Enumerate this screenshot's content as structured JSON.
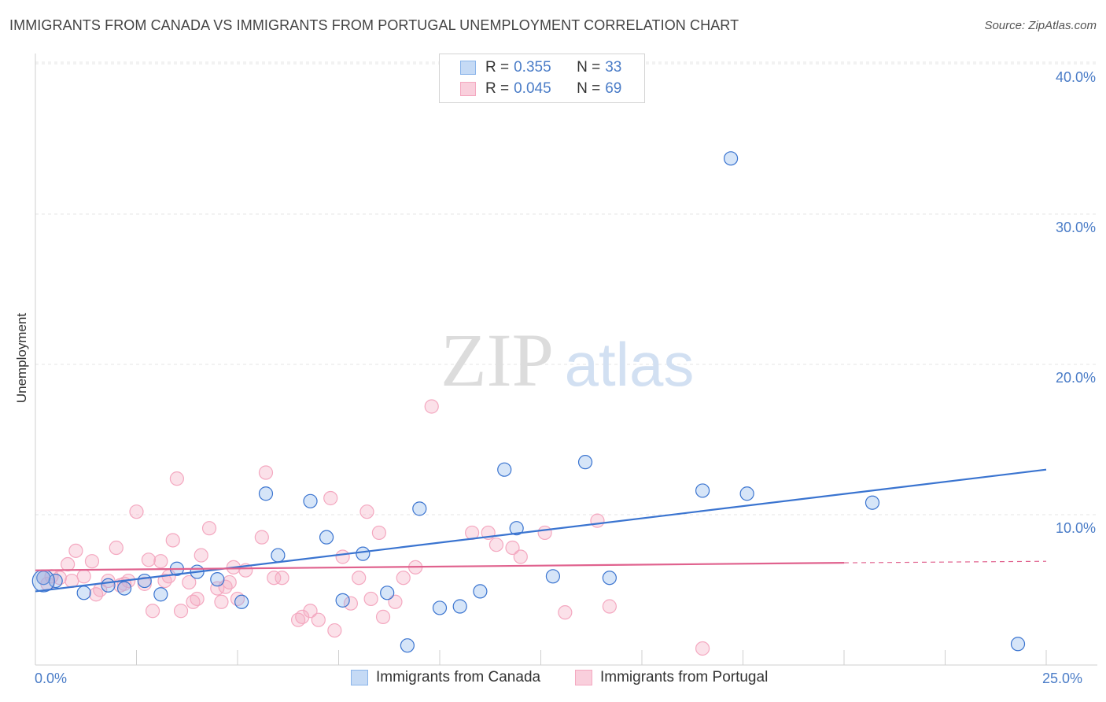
{
  "title": "IMMIGRANTS FROM CANADA VS IMMIGRANTS FROM PORTUGAL UNEMPLOYMENT CORRELATION CHART",
  "source": "Source: ZipAtlas.com",
  "watermark": {
    "zip": "ZIP",
    "atlas": "atlas"
  },
  "legend": {
    "rows": [
      {
        "r_label": "R =",
        "r_value": "0.355",
        "n_label": "N =",
        "n_value": "33"
      },
      {
        "r_label": "R =",
        "r_value": "0.045",
        "n_label": "N =",
        "n_value": "69"
      }
    ]
  },
  "chart_data": {
    "type": "scatter",
    "title": "IMMIGRANTS FROM CANADA VS IMMIGRANTS FROM PORTUGAL UNEMPLOYMENT CORRELATION CHART",
    "xlabel": "",
    "ylabel": "Unemployment",
    "xlim": [
      0,
      25
    ],
    "ylim": [
      0,
      42
    ],
    "x_tick_labels": [
      "0.0%",
      "25.0%"
    ],
    "y_ticks": [
      10,
      20,
      30,
      40
    ],
    "y_tick_labels": [
      "10.0%",
      "20.0%",
      "30.0%",
      "40.0%"
    ],
    "grid": true,
    "legend_position": "top-center",
    "colors": {
      "canada": "#8ab4ea",
      "canada_line": "#3a74d0",
      "portugal": "#f4a8c0",
      "portugal_line": "#e0628e"
    },
    "series": [
      {
        "name": "Immigrants from Canada",
        "trend": {
          "x": [
            0,
            25
          ],
          "y": [
            4.9,
            13.0
          ]
        },
        "points": [
          [
            0.2,
            5.8
          ],
          [
            1.2,
            4.8
          ],
          [
            2.2,
            5.1
          ],
          [
            2.7,
            5.6
          ],
          [
            3.1,
            4.7
          ],
          [
            3.5,
            6.4
          ],
          [
            4.0,
            6.2
          ],
          [
            4.5,
            5.7
          ],
          [
            5.1,
            4.2
          ],
          [
            5.7,
            11.4
          ],
          [
            6.0,
            7.3
          ],
          [
            6.8,
            10.9
          ],
          [
            7.2,
            8.5
          ],
          [
            7.6,
            4.3
          ],
          [
            8.1,
            7.4
          ],
          [
            8.7,
            4.8
          ],
          [
            9.2,
            1.3
          ],
          [
            9.5,
            10.4
          ],
          [
            10.0,
            3.8
          ],
          [
            10.5,
            3.9
          ],
          [
            11.0,
            4.9
          ],
          [
            11.6,
            13.0
          ],
          [
            11.9,
            9.1
          ],
          [
            12.8,
            5.9
          ],
          [
            13.6,
            13.5
          ],
          [
            14.2,
            5.8
          ],
          [
            16.5,
            11.6
          ],
          [
            17.2,
            33.7
          ],
          [
            17.6,
            11.4
          ],
          [
            20.7,
            10.8
          ],
          [
            24.3,
            1.4
          ],
          [
            0.5,
            5.6
          ],
          [
            1.8,
            5.3
          ]
        ]
      },
      {
        "name": "Immigrants from Portugal",
        "trend": {
          "x": [
            0,
            20
          ],
          "y": [
            6.3,
            6.8
          ]
        },
        "trend_ext": {
          "x": [
            20,
            25
          ],
          "y": [
            6.8,
            6.9
          ]
        },
        "points": [
          [
            0.2,
            5.8
          ],
          [
            0.4,
            5.9
          ],
          [
            0.6,
            5.8
          ],
          [
            0.8,
            6.7
          ],
          [
            1.0,
            7.6
          ],
          [
            1.2,
            5.9
          ],
          [
            1.4,
            6.9
          ],
          [
            1.6,
            5.0
          ],
          [
            1.8,
            5.6
          ],
          [
            2.0,
            7.8
          ],
          [
            2.2,
            5.4
          ],
          [
            2.3,
            5.6
          ],
          [
            2.5,
            10.2
          ],
          [
            2.7,
            5.4
          ],
          [
            2.8,
            7.0
          ],
          [
            2.9,
            3.6
          ],
          [
            3.1,
            6.9
          ],
          [
            3.2,
            5.6
          ],
          [
            3.4,
            8.3
          ],
          [
            3.5,
            12.4
          ],
          [
            3.6,
            3.6
          ],
          [
            3.8,
            5.5
          ],
          [
            3.9,
            4.2
          ],
          [
            4.0,
            4.4
          ],
          [
            4.1,
            7.3
          ],
          [
            4.3,
            9.1
          ],
          [
            4.5,
            5.1
          ],
          [
            4.6,
            4.2
          ],
          [
            4.8,
            5.5
          ],
          [
            4.9,
            6.5
          ],
          [
            5.0,
            4.4
          ],
          [
            5.2,
            6.3
          ],
          [
            5.6,
            8.5
          ],
          [
            5.7,
            12.8
          ],
          [
            5.9,
            5.8
          ],
          [
            6.5,
            3.0
          ],
          [
            6.6,
            3.2
          ],
          [
            6.8,
            3.6
          ],
          [
            7.0,
            3.0
          ],
          [
            7.3,
            11.1
          ],
          [
            7.4,
            2.3
          ],
          [
            7.6,
            7.2
          ],
          [
            7.8,
            4.1
          ],
          [
            8.0,
            5.8
          ],
          [
            8.2,
            10.2
          ],
          [
            8.3,
            4.4
          ],
          [
            8.5,
            8.8
          ],
          [
            8.6,
            3.2
          ],
          [
            8.9,
            4.2
          ],
          [
            9.1,
            5.8
          ],
          [
            9.4,
            6.5
          ],
          [
            9.8,
            17.2
          ],
          [
            10.8,
            8.8
          ],
          [
            11.2,
            8.8
          ],
          [
            11.4,
            8.0
          ],
          [
            11.8,
            7.8
          ],
          [
            12.0,
            7.2
          ],
          [
            12.6,
            8.8
          ],
          [
            13.1,
            3.5
          ],
          [
            13.9,
            9.6
          ],
          [
            14.2,
            3.9
          ],
          [
            16.5,
            1.1
          ],
          [
            0.3,
            5.4
          ],
          [
            0.9,
            5.6
          ],
          [
            1.5,
            4.7
          ],
          [
            2.1,
            5.3
          ],
          [
            3.3,
            5.9
          ],
          [
            4.7,
            5.2
          ],
          [
            6.1,
            5.8
          ]
        ]
      }
    ]
  },
  "bottom_legend": [
    {
      "label": "Immigrants from Canada"
    },
    {
      "label": "Immigrants from Portugal"
    }
  ]
}
